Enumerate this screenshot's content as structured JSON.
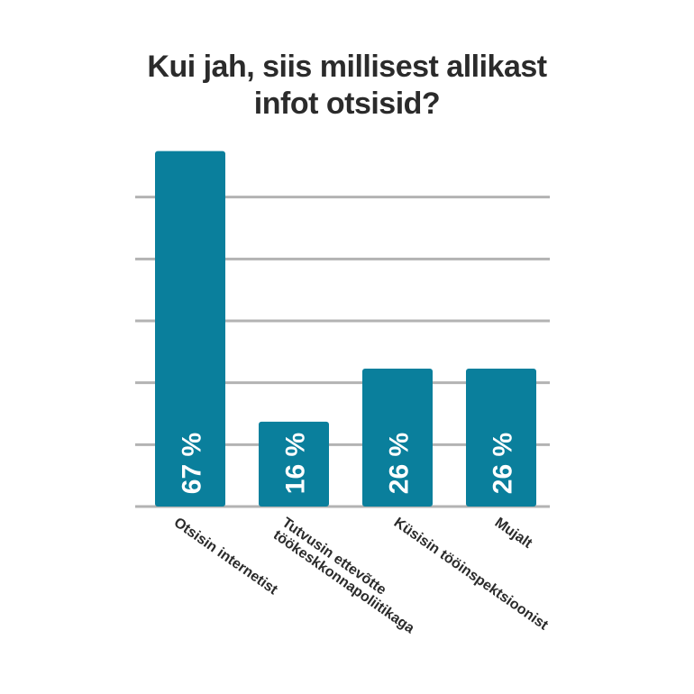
{
  "chart_data": {
    "type": "bar",
    "title_lines": [
      "Kui jah, siis millisest allikast",
      "infot otsisid?"
    ],
    "categories": [
      [
        "Otsisin internetist"
      ],
      [
        "Tutvusin ettevõtte",
        "töökeskkonnapoliitikaga"
      ],
      [
        "Küsisin tööinspektsioonist"
      ],
      [
        "Mujalt"
      ]
    ],
    "values": [
      67,
      16,
      26,
      26
    ],
    "value_labels": [
      "67 %",
      "16 %",
      "26 %",
      "26 %"
    ],
    "ylim": [
      0,
      70
    ],
    "grid": true,
    "colors": {
      "bar": "#0a7f9c",
      "grid": "#b3b3b3",
      "label": "#ffffff",
      "text": "#2b2b2b"
    }
  }
}
